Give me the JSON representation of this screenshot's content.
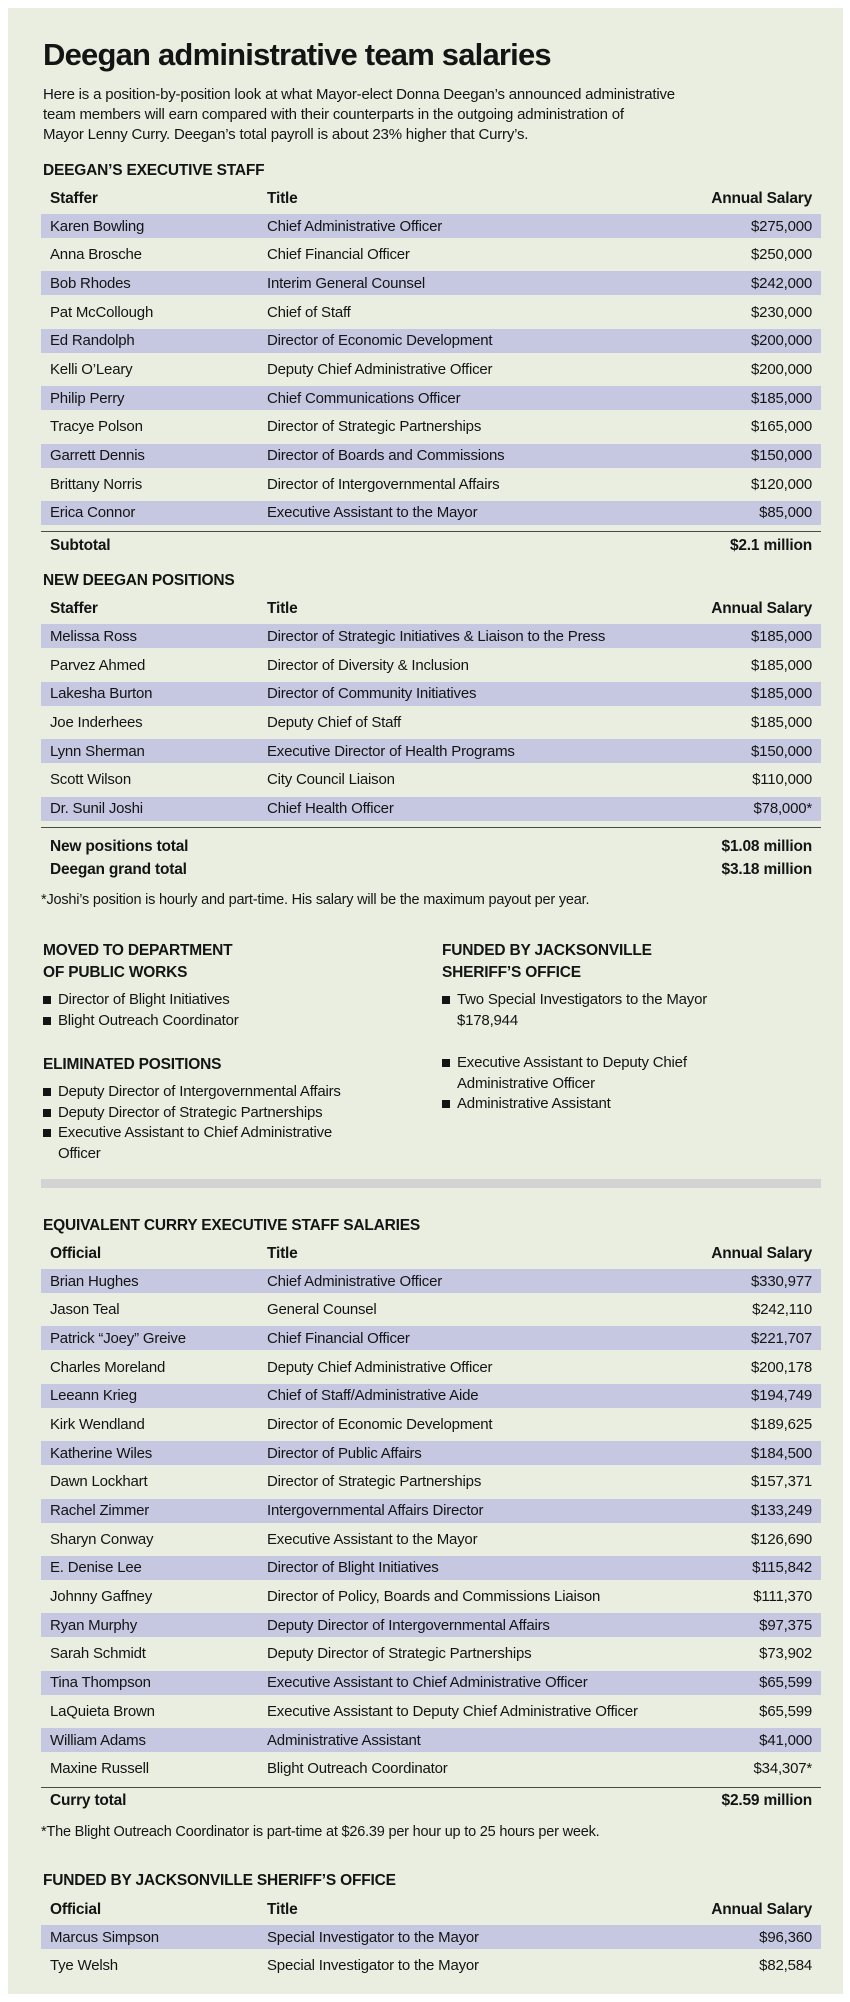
{
  "colors": {
    "panel_bg": "#e9eee1",
    "row_shade": "#c6c8e2",
    "divider": "#d3d3d3",
    "rule": "#4a4a4a"
  },
  "page": {
    "title": "Deegan administrative team salaries",
    "intro_lines": [
      "Here is a position-by-position look at what Mayor-elect Donna Deegan’s announced administrative",
      "team members will earn compared with their counterparts in the outgoing administration of",
      "Mayor Lenny Curry. Deegan’s total payroll is about 23% higher that Curry’s."
    ]
  },
  "chart_data": [
    {
      "type": "table",
      "title": "DEEGAN’S EXECUTIVE STAFF",
      "columns": [
        "Staffer",
        "Title",
        "Annual Salary"
      ],
      "rows": [
        {
          "name": "Karen Bowling",
          "title": "Chief Administrative Officer",
          "salary": "$275,000"
        },
        {
          "name": "Anna Brosche",
          "title": "Chief Financial Officer",
          "salary": "$250,000"
        },
        {
          "name": "Bob Rhodes",
          "title": "Interim General Counsel",
          "salary": "$242,000"
        },
        {
          "name": "Pat McCollough",
          "title": "Chief of Staff",
          "salary": "$230,000"
        },
        {
          "name": "Ed Randolph",
          "title": "Director of Economic Development",
          "salary": "$200,000"
        },
        {
          "name": "Kelli O’Leary",
          "title": "Deputy Chief Administrative Officer",
          "salary": "$200,000"
        },
        {
          "name": "Philip Perry",
          "title": "Chief Communications Officer",
          "salary": "$185,000"
        },
        {
          "name": "Tracye Polson",
          "title": "Director of Strategic Partnerships",
          "salary": "$165,000"
        },
        {
          "name": "Garrett Dennis",
          "title": "Director of Boards and Commissions",
          "salary": "$150,000"
        },
        {
          "name": "Brittany Norris",
          "title": "Director of Intergovernmental Affairs",
          "salary": "$120,000"
        },
        {
          "name": "Erica Connor",
          "title": "Executive Assistant to the Mayor",
          "salary": "$85,000"
        }
      ],
      "totals": [
        {
          "label": "Subtotal",
          "value": "$2.1 million"
        }
      ]
    },
    {
      "type": "table",
      "title": "NEW DEEGAN POSITIONS",
      "columns": [
        "Staffer",
        "Title",
        "Annual Salary"
      ],
      "rows": [
        {
          "name": "Melissa Ross",
          "title": "Director of Strategic Initiatives & Liaison to the Press",
          "salary": "$185,000"
        },
        {
          "name": "Parvez Ahmed",
          "title": "Director of Diversity & Inclusion",
          "salary": "$185,000"
        },
        {
          "name": "Lakesha Burton",
          "title": "Director of Community Initiatives",
          "salary": "$185,000"
        },
        {
          "name": "Joe Inderhees",
          "title": "Deputy Chief of Staff",
          "salary": "$185,000"
        },
        {
          "name": "Lynn Sherman",
          "title": "Executive Director of Health Programs",
          "salary": "$150,000"
        },
        {
          "name": "Scott Wilson",
          "title": "City Council Liaison",
          "salary": "$110,000"
        },
        {
          "name": "Dr. Sunil Joshi",
          "title": "Chief Health Officer",
          "salary": "$78,000*"
        }
      ],
      "totals": [
        {
          "label": "New positions total",
          "value": "$1.08 million"
        },
        {
          "label": "Deegan grand total",
          "value": "$3.18 million"
        }
      ],
      "footnote": "*Joshi’s position is hourly and part-time. His salary will be the maximum payout per year."
    },
    {
      "type": "table",
      "title": "EQUIVALENT CURRY EXECUTIVE STAFF SALARIES",
      "columns": [
        "Official",
        "Title",
        "Annual Salary"
      ],
      "rows": [
        {
          "name": "Brian Hughes",
          "title": "Chief Administrative Officer",
          "salary": "$330,977"
        },
        {
          "name": "Jason Teal",
          "title": "General Counsel",
          "salary": "$242,110"
        },
        {
          "name": "Patrick “Joey” Greive",
          "title": "Chief Financial Officer",
          "salary": "$221,707"
        },
        {
          "name": "Charles Moreland",
          "title": "Deputy Chief Administrative Officer",
          "salary": "$200,178"
        },
        {
          "name": "Leeann Krieg",
          "title": "Chief of Staff/Administrative Aide",
          "salary": "$194,749"
        },
        {
          "name": "Kirk Wendland",
          "title": "Director of Economic Development",
          "salary": "$189,625"
        },
        {
          "name": "Katherine Wiles",
          "title": "Director of Public Affairs",
          "salary": "$184,500"
        },
        {
          "name": "Dawn Lockhart",
          "title": "Director of Strategic Partnerships",
          "salary": "$157,371"
        },
        {
          "name": "Rachel Zimmer",
          "title": "Intergovernmental Affairs Director",
          "salary": "$133,249"
        },
        {
          "name": "Sharyn Conway",
          "title": "Executive Assistant to the Mayor",
          "salary": "$126,690"
        },
        {
          "name": "E. Denise Lee",
          "title": "Director of Blight Initiatives",
          "salary": "$115,842"
        },
        {
          "name": "Johnny Gaffney",
          "title": "Director of Policy, Boards and Commissions Liaison",
          "salary": "$111,370"
        },
        {
          "name": "Ryan Murphy",
          "title": "Deputy Director of Intergovernmental Affairs",
          "salary": "$97,375"
        },
        {
          "name": "Sarah Schmidt",
          "title": "Deputy Director of Strategic Partnerships",
          "salary": "$73,902"
        },
        {
          "name": "Tina Thompson",
          "title": "Executive Assistant to Chief Administrative Officer",
          "salary": "$65,599"
        },
        {
          "name": "LaQuieta Brown",
          "title": "Executive Assistant to Deputy Chief Administrative Officer",
          "salary": "$65,599"
        },
        {
          "name": "William Adams",
          "title": "Administrative Assistant",
          "salary": "$41,000"
        },
        {
          "name": "Maxine Russell",
          "title": "Blight Outreach Coordinator",
          "salary": "$34,307*"
        }
      ],
      "totals": [
        {
          "label": "Curry total",
          "value": "$2.59 million"
        }
      ],
      "footnote": "*The Blight Outreach Coordinator is part-time at $26.39 per hour up to 25 hours per week."
    },
    {
      "type": "table",
      "title": "FUNDED BY JACKSONVILLE SHERIFF’S OFFICE",
      "columns": [
        "Official",
        "Title",
        "Annual Salary"
      ],
      "rows": [
        {
          "name": "Marcus Simpson",
          "title": "Special Investigator to the Mayor",
          "salary": "$96,360"
        },
        {
          "name": "Tye Welsh",
          "title": "Special Investigator to the Mayor",
          "salary": "$82,584"
        }
      ]
    }
  ],
  "lists": {
    "moved": {
      "heading_lines": [
        "MOVED TO DEPARTMENT",
        "OF PUBLIC WORKS"
      ],
      "items": [
        {
          "text": "Director of Blight Initiatives"
        },
        {
          "text": "Blight Outreach Coordinator"
        }
      ]
    },
    "eliminated": {
      "heading": "ELIMINATED POSITIONS",
      "items": [
        {
          "text": "Deputy Director of Intergovernmental Affairs"
        },
        {
          "text": "Deputy Director of Strategic Partnerships"
        },
        {
          "text": "Executive Assistant to Chief Administrative Officer"
        }
      ]
    },
    "sheriff": {
      "heading_lines": [
        "FUNDED BY JACKSONVILLE",
        "SHERIFF’S OFFICE"
      ],
      "items": [
        {
          "text": "Two Special Investigators to the Mayor",
          "sub": "$178,944"
        },
        {
          "gap": true
        },
        {
          "text": "Executive Assistant to Deputy Chief Administrative Officer"
        },
        {
          "text": "Administrative Assistant"
        }
      ]
    }
  }
}
